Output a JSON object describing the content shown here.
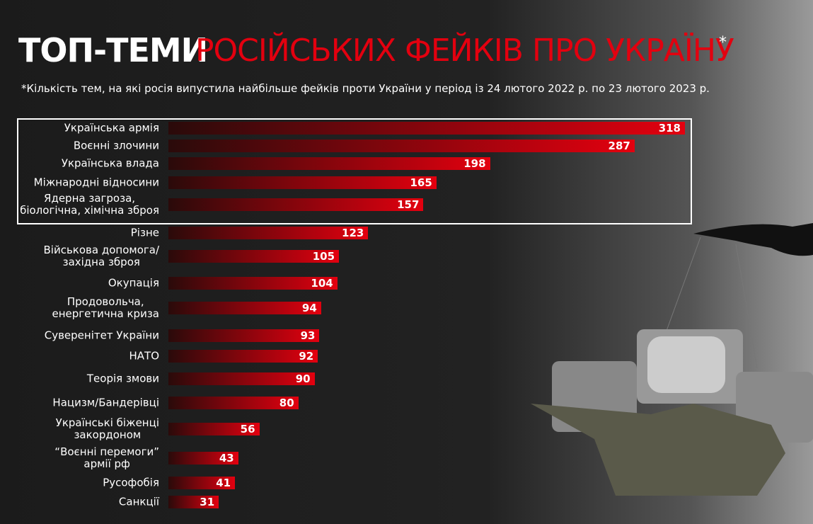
{
  "chart_data": {
    "type": "bar",
    "orientation": "horizontal",
    "title_part1": "ТОП-ТЕМИ",
    "title_part2": "РОСІЙСЬКИХ ФЕЙКІВ ПРО УКРАЇНУ",
    "title_mark": "*",
    "subtitle": "*Кількість тем, на які росія випустила найбільше фейків проти України у період із 24 лютого 2022 р. по 23 лютого 2023 р.",
    "categories": [
      "Українська армія",
      "Воєнні злочини",
      "Українська влада",
      "Міжнародні відносини",
      "Ядерна загроза,\nбіологічна, хімічна зброя",
      "Різне",
      "Військова допомога/\nзахідна зброя",
      "Окупація",
      "Продовольча,\nенергетична криза",
      "Суверенітет України",
      "НАТО",
      "Теорія змови",
      "Нацизм/Бандерівці",
      "Українські біженці\nзакордоном",
      "“Воєнні перемоги”\nармії рф",
      "Русофобія",
      "Санкції"
    ],
    "values": [
      318,
      287,
      198,
      165,
      157,
      123,
      105,
      104,
      94,
      93,
      92,
      90,
      80,
      56,
      43,
      41,
      31
    ],
    "color": "#e3000f"
  }
}
